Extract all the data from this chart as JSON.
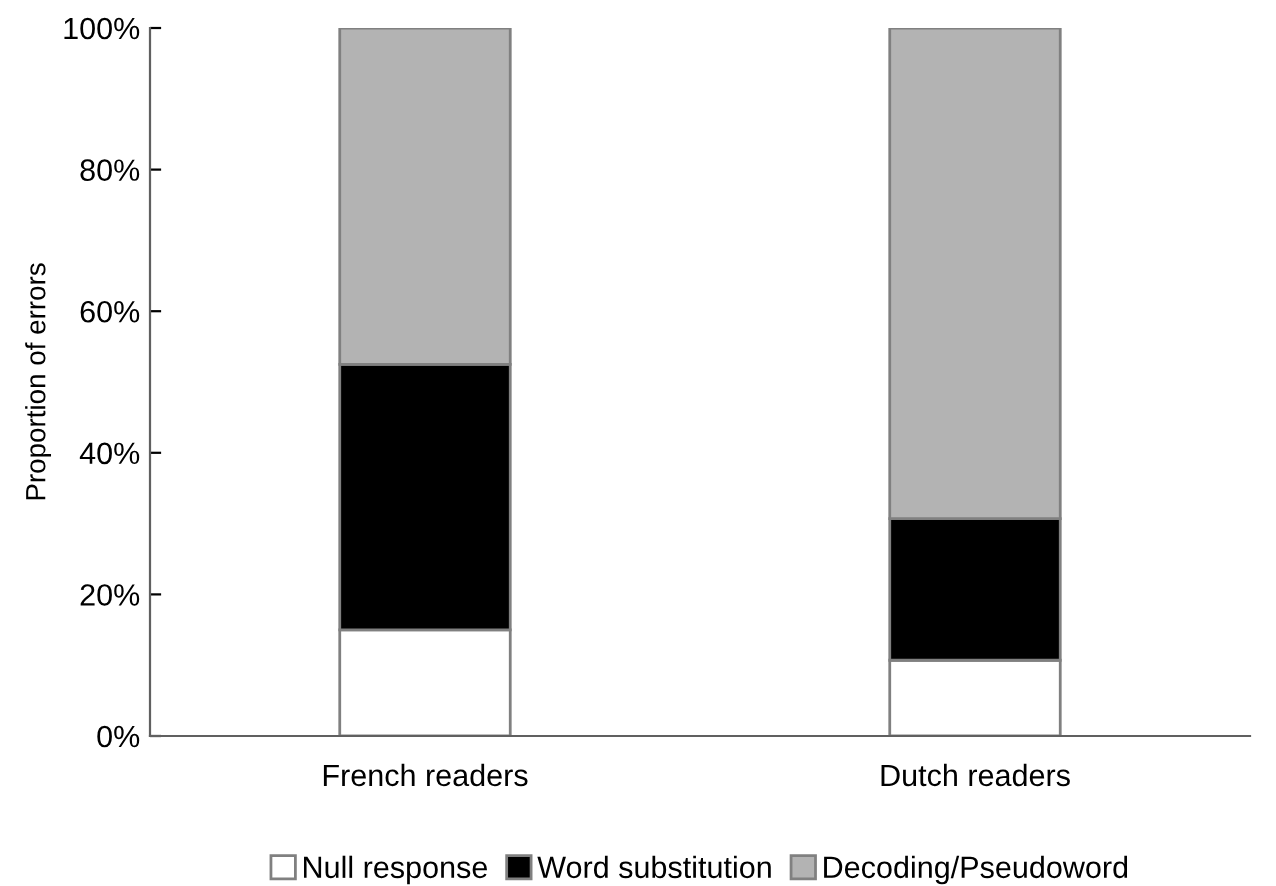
{
  "chart_data": {
    "type": "bar",
    "stacked": true,
    "ylabel": "Proportion of errors",
    "categories": [
      "French readers",
      "Dutch readers"
    ],
    "series": [
      {
        "name": "Null response",
        "color": "#ffffff",
        "values": [
          15,
          10.7
        ]
      },
      {
        "name": "Word substitution",
        "color": "#000000",
        "values": [
          37.5,
          20
        ]
      },
      {
        "name": "Decoding/Pseudoword",
        "color": "#b3b3b3",
        "values": [
          47.5,
          69.3
        ]
      }
    ],
    "ylim": [
      0,
      100
    ],
    "yticks": [
      {
        "value": 0,
        "label": "0%"
      },
      {
        "value": 20,
        "label": "20%"
      },
      {
        "value": 40,
        "label": "40%"
      },
      {
        "value": 60,
        "label": "60%"
      },
      {
        "value": 80,
        "label": "80%"
      },
      {
        "value": 100,
        "label": "100%"
      }
    ],
    "grid": false,
    "legend": "bottom"
  }
}
